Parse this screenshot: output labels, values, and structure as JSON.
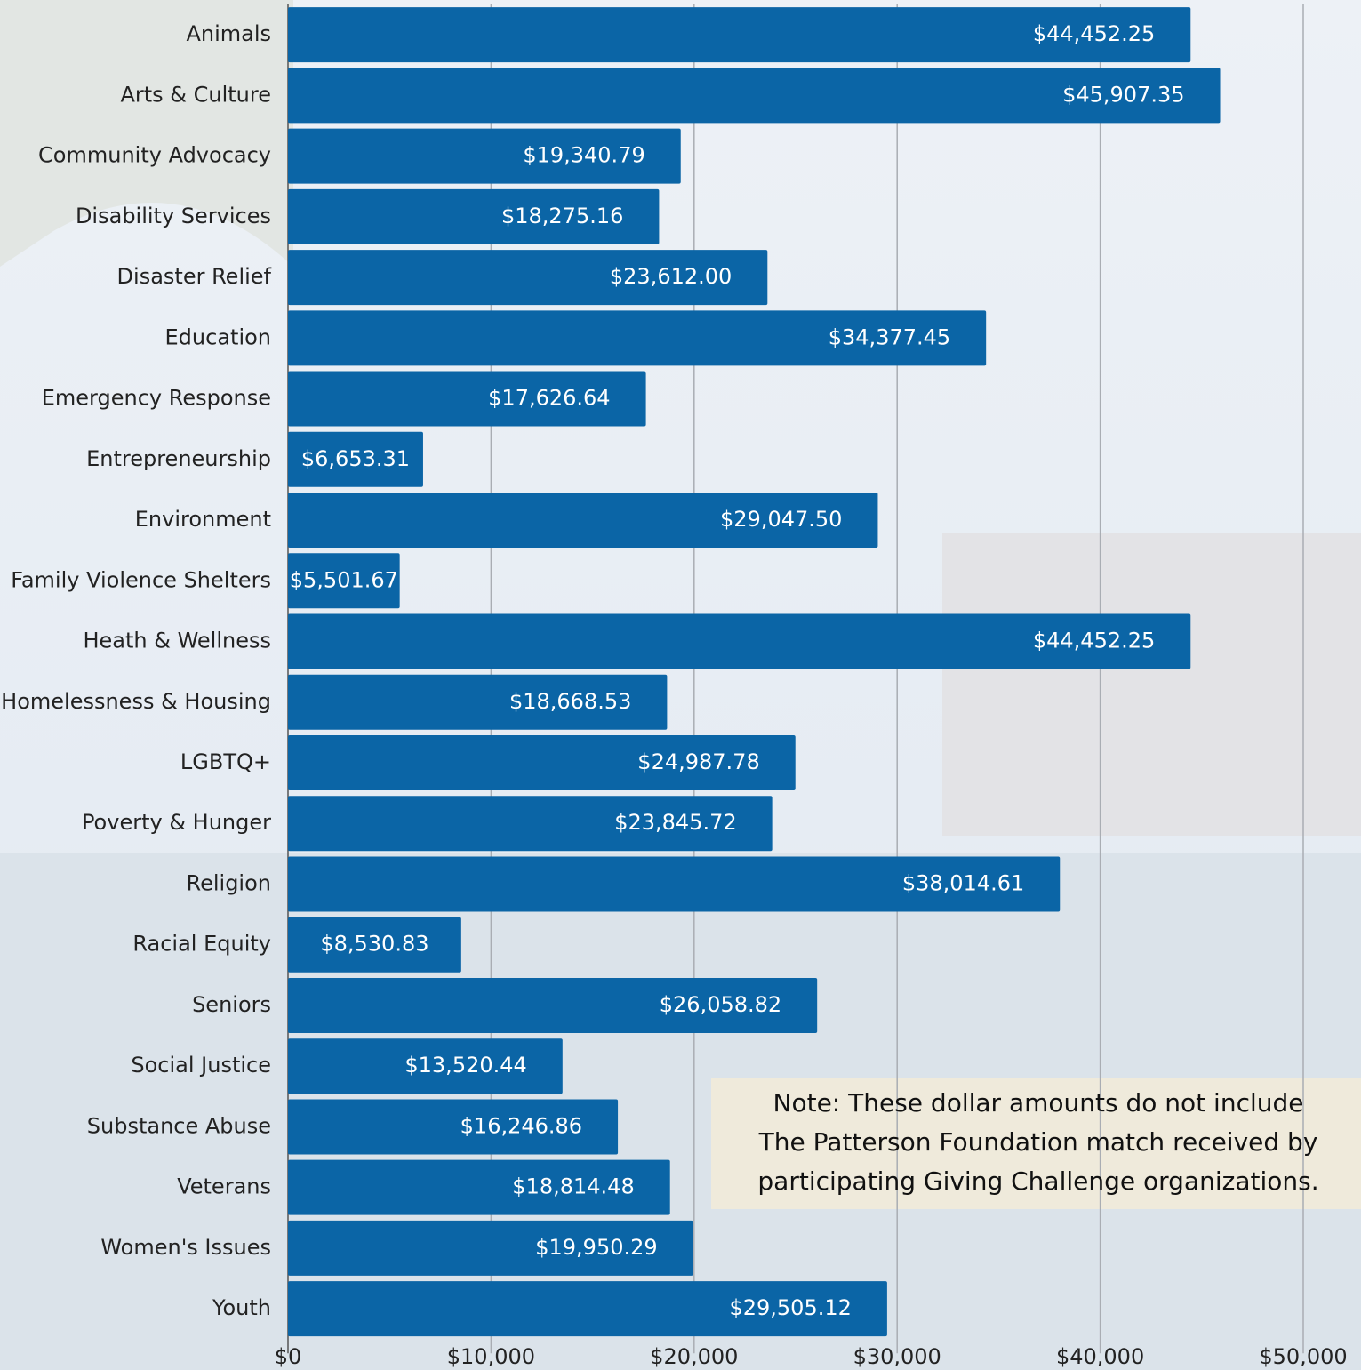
{
  "chart_data": {
    "type": "barh",
    "categories": [
      "Animals",
      "Arts & Culture",
      "Community Advocacy",
      "Disability Services",
      "Disaster Relief",
      "Education",
      "Emergency Response",
      "Entrepreneurship",
      "Environment",
      "Family Violence Shelters",
      "Heath & Wellness",
      "Homelessness & Housing",
      "LGBTQ+",
      "Poverty & Hunger",
      "Religion",
      "Racial Equity",
      "Seniors",
      "Social Justice",
      "Substance Abuse",
      "Veterans",
      "Women's Issues",
      "Youth"
    ],
    "values": [
      44452.25,
      45907.35,
      19340.79,
      18275.16,
      23612.0,
      34377.45,
      17626.64,
      6653.31,
      29047.5,
      5501.67,
      44452.25,
      18668.53,
      24987.78,
      23845.72,
      38014.61,
      8530.83,
      26058.82,
      13520.44,
      16246.86,
      18814.48,
      19950.29,
      29505.12
    ],
    "value_labels": [
      "$44,452.25",
      "$45,907.35",
      "$19,340.79",
      "$18,275.16",
      "$23,612.00",
      "$34,377.45",
      "$17,626.64",
      "$6,653.31",
      "$29,047.50",
      "$5,501.67",
      "$44,452.25",
      "$18,668.53",
      "$24,987.78",
      "$23,845.72",
      "$38,014.61",
      "$8,530.83",
      "$26,058.82",
      "$13,520.44",
      "$16,246.86",
      "$18,814.48",
      "$19,950.29",
      "$29,505.12"
    ],
    "color": "#0b65a6",
    "xlim": [
      0,
      50000
    ],
    "xticks": [
      {
        "value": 0,
        "label": "$0"
      },
      {
        "value": 10000,
        "label": "$10,000"
      },
      {
        "value": 20000,
        "label": "$20,000"
      },
      {
        "value": 30000,
        "label": "$30,000"
      },
      {
        "value": 40000,
        "label": "$40,000"
      },
      {
        "value": 50000,
        "label": "$50,000"
      }
    ],
    "grid": true,
    "annotation_lines": [
      "Note: These dollar amounts do not include",
      "The Patterson Foundation match received by",
      "participating Giving Challenge organizations."
    ]
  }
}
